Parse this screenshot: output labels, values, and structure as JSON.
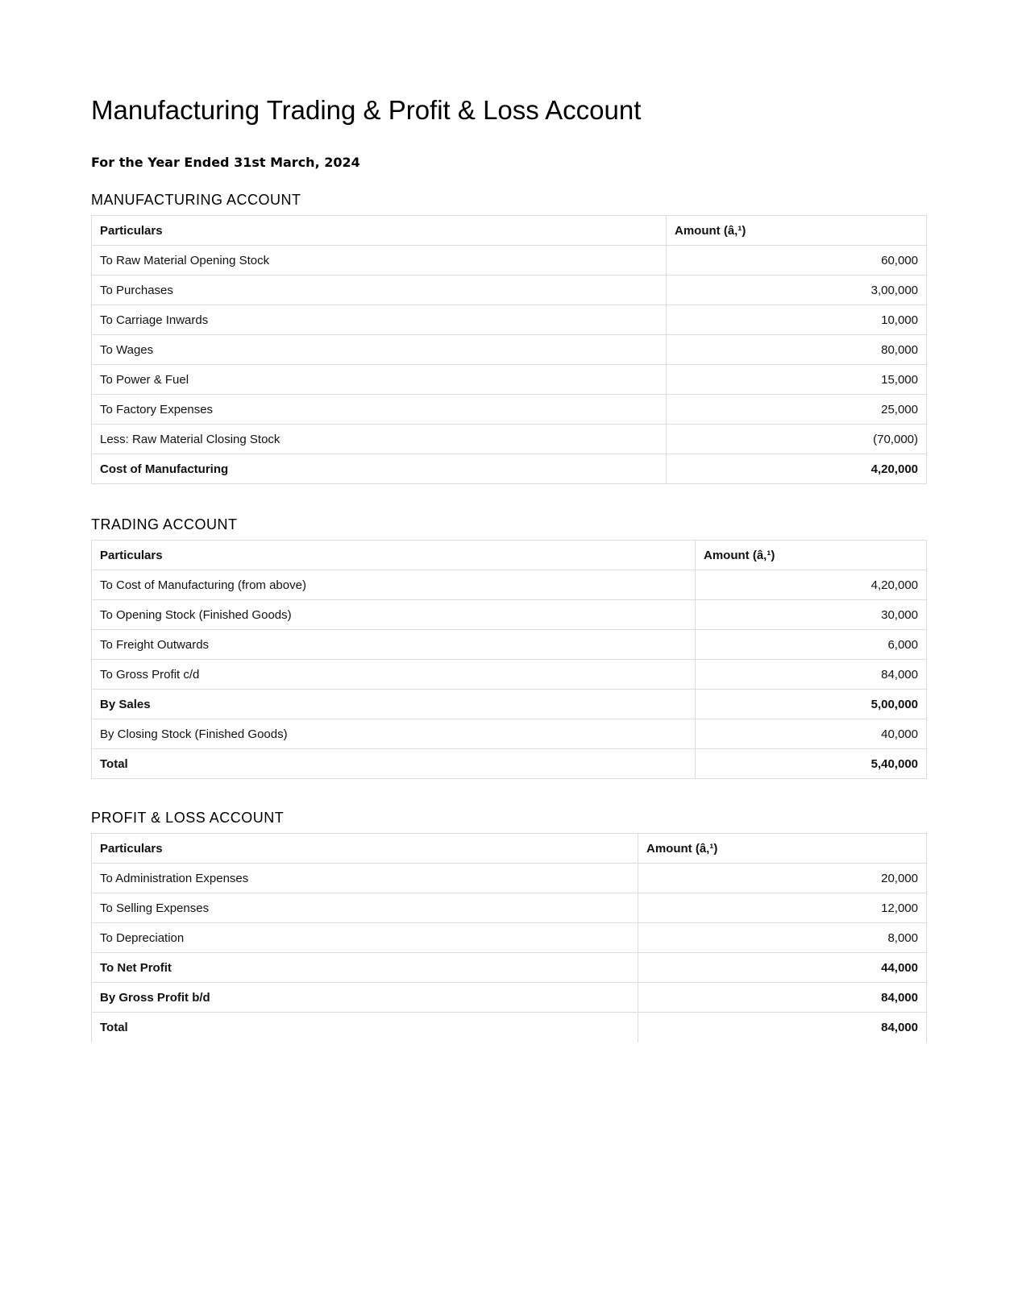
{
  "title": "Manufacturing Trading & Profit & Loss Account",
  "subtitle": "For the Year Ended 31st March, 2024",
  "sections": [
    {
      "heading": "MANUFACTURING ACCOUNT",
      "col_particulars": "Particulars",
      "col_amount": "Amount (â‚¹)",
      "rows": [
        {
          "label": "To Raw Material Opening Stock",
          "amount": "60,000",
          "bold": false
        },
        {
          "label": "To Purchases",
          "amount": "3,00,000",
          "bold": false
        },
        {
          "label": "To Carriage Inwards",
          "amount": "10,000",
          "bold": false
        },
        {
          "label": "To Wages",
          "amount": "80,000",
          "bold": false
        },
        {
          "label": "To Power & Fuel",
          "amount": "15,000",
          "bold": false
        },
        {
          "label": "To Factory Expenses",
          "amount": "25,000",
          "bold": false
        },
        {
          "label": "Less: Raw Material Closing Stock",
          "amount": "(70,000)",
          "bold": false
        },
        {
          "label": "Cost of Manufacturing",
          "amount": "4,20,000",
          "bold": true
        }
      ]
    },
    {
      "heading": "TRADING ACCOUNT",
      "col_particulars": "Particulars",
      "col_amount": "Amount (â‚¹)",
      "rows": [
        {
          "label": "To Cost of Manufacturing (from above)",
          "amount": "4,20,000",
          "bold": false
        },
        {
          "label": "To Opening Stock (Finished Goods)",
          "amount": "30,000",
          "bold": false
        },
        {
          "label": "To Freight Outwards",
          "amount": "6,000",
          "bold": false
        },
        {
          "label": "To Gross Profit c/d",
          "amount": "84,000",
          "bold": false
        },
        {
          "label": "By Sales",
          "amount": "5,00,000",
          "bold": true
        },
        {
          "label": "By Closing Stock (Finished Goods)",
          "amount": "40,000",
          "bold": false
        },
        {
          "label": "Total",
          "amount": "5,40,000",
          "bold": true
        }
      ]
    },
    {
      "heading": "PROFIT & LOSS ACCOUNT",
      "col_particulars": "Particulars",
      "col_amount": "Amount (â‚¹)",
      "rows": [
        {
          "label": "To Administration Expenses",
          "amount": "20,000",
          "bold": false
        },
        {
          "label": "To Selling Expenses",
          "amount": "12,000",
          "bold": false
        },
        {
          "label": "To Depreciation",
          "amount": "8,000",
          "bold": false
        },
        {
          "label": "To Net Profit",
          "amount": "44,000",
          "bold": true
        },
        {
          "label": "By Gross Profit b/d",
          "amount": "84,000",
          "bold": true
        },
        {
          "label": "Total",
          "amount": "84,000",
          "bold": true
        }
      ]
    }
  ]
}
